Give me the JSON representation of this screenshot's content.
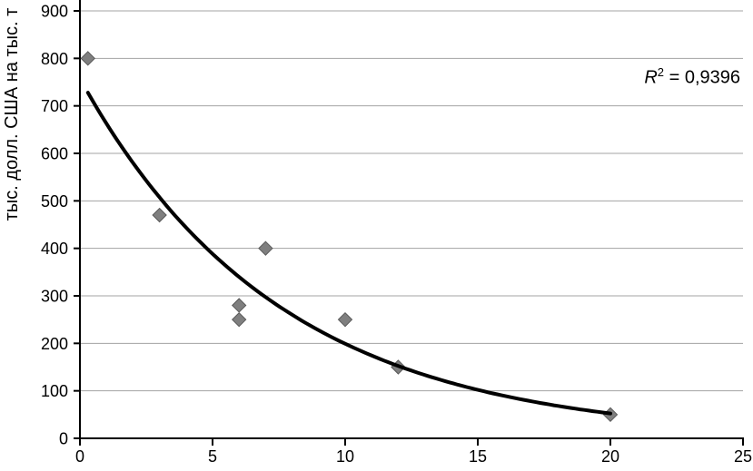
{
  "colors": {
    "background": "#ffffff",
    "axis": "#000000",
    "gridline": "#a3a3a3",
    "text": "#000000",
    "marker": "#7f7f7f",
    "marker_edge": "#595959",
    "trendline": "#000000"
  },
  "chart_data": {
    "type": "scatter",
    "title": "",
    "xlabel": "",
    "ylabel": "тыс. долл. США на тыс. т",
    "xlim": [
      0,
      25
    ],
    "ylim": [
      0,
      900
    ],
    "x_ticks": [
      0,
      5,
      10,
      15,
      20,
      25
    ],
    "y_ticks": [
      0,
      100,
      200,
      300,
      400,
      500,
      600,
      700,
      800,
      900
    ],
    "grid": "horizontal",
    "legend": "none",
    "series": [
      {
        "marker": "diamond",
        "color": "#7f7f7f",
        "edge_color": "#595959",
        "points": [
          {
            "x": 0.3,
            "y": 800
          },
          {
            "x": 3,
            "y": 470
          },
          {
            "x": 6,
            "y": 280
          },
          {
            "x": 6,
            "y": 250
          },
          {
            "x": 7,
            "y": 400
          },
          {
            "x": 10,
            "y": 250
          },
          {
            "x": 12,
            "y": 150
          },
          {
            "x": 20,
            "y": 50
          }
        ]
      }
    ],
    "trendline": {
      "type": "exponential",
      "a": 757.6,
      "b": -0.1336,
      "x_start": 0.3,
      "x_end": 20,
      "r_squared": 0.9396,
      "color": "#000000"
    },
    "annotation": {
      "r_label": "R",
      "exponent": "2",
      "value_text": " = 0,9396"
    }
  }
}
